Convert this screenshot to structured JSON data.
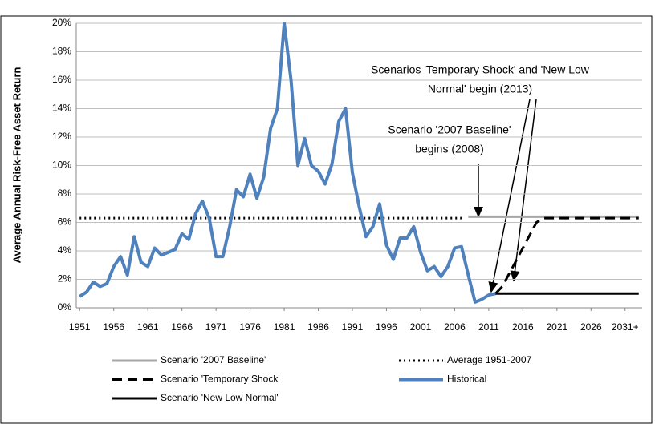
{
  "chart_data": {
    "type": "line",
    "ylabel": "Average Annual Risk-Free Asset Return",
    "xlim": [
      1950.5,
      2033.5
    ],
    "xticks": [
      1951,
      1956,
      1961,
      1966,
      1971,
      1976,
      1981,
      1986,
      1991,
      1996,
      2001,
      2006,
      2011,
      2016,
      2021,
      2026,
      {
        "value": 2031,
        "label": "2031+"
      }
    ],
    "ylim": [
      0,
      20
    ],
    "yticks": [
      {
        "value": 0,
        "label": "0%"
      },
      {
        "value": 2,
        "label": "2%"
      },
      {
        "value": 4,
        "label": "4%"
      },
      {
        "value": 6,
        "label": "6%"
      },
      {
        "value": 8,
        "label": "8%"
      },
      {
        "value": 10,
        "label": "10%"
      },
      {
        "value": 12,
        "label": "12%"
      },
      {
        "value": 14,
        "label": "14%"
      },
      {
        "value": 16,
        "label": "16%"
      },
      {
        "value": 18,
        "label": "18%"
      },
      {
        "value": 20,
        "label": "20%"
      }
    ],
    "grid": true,
    "legend": "bottom",
    "annotations": [
      {
        "lines": [
          "Scenarios 'Temporary Shock' and 'New Low",
          "Normal' begin (2013)"
        ]
      },
      {
        "lines": [
          "Scenario '2007 Baseline'",
          "begins (2008)"
        ]
      }
    ],
    "series": [
      {
        "name": "Scenario '2007 Baseline'",
        "color": "#a6a6a6",
        "style": "solid",
        "x": [
          2008,
          2033
        ],
        "values": [
          6.4,
          6.4
        ]
      },
      {
        "name": "Average 1951-2007",
        "color": "#000000",
        "style": "dotted",
        "x": [
          1951,
          2007
        ],
        "values": [
          6.3,
          6.3
        ]
      },
      {
        "name": "Scenario 'Temporary Shock'",
        "color": "#000000",
        "style": "dashed",
        "x": [
          2012,
          2013,
          2018,
          2019,
          2033
        ],
        "values": [
          1.0,
          1.5,
          6.0,
          6.3,
          6.3
        ]
      },
      {
        "name": "Historical",
        "color": "#4f81bd",
        "style": "thick",
        "x": [
          1951,
          1952,
          1953,
          1954,
          1955,
          1956,
          1957,
          1958,
          1959,
          1960,
          1961,
          1962,
          1963,
          1964,
          1965,
          1966,
          1967,
          1968,
          1969,
          1970,
          1971,
          1972,
          1973,
          1974,
          1975,
          1976,
          1977,
          1978,
          1979,
          1980,
          1981,
          1982,
          1983,
          1984,
          1985,
          1986,
          1987,
          1988,
          1989,
          1990,
          1991,
          1992,
          1993,
          1994,
          1995,
          1996,
          1997,
          1998,
          1999,
          2000,
          2001,
          2002,
          2003,
          2004,
          2005,
          2006,
          2007,
          2008,
          2009,
          2010,
          2011,
          2012
        ],
        "values": [
          0.8,
          1.1,
          1.8,
          1.5,
          1.7,
          2.9,
          3.6,
          2.3,
          5.0,
          3.2,
          2.9,
          4.2,
          3.7,
          3.9,
          4.1,
          5.2,
          4.8,
          6.6,
          7.5,
          6.3,
          3.6,
          3.6,
          5.7,
          8.3,
          7.8,
          9.4,
          7.7,
          9.2,
          12.6,
          14.0,
          20.0,
          16.0,
          10.0,
          11.9,
          10.0,
          9.6,
          8.7,
          10.1,
          13.1,
          14.0,
          9.5,
          7.1,
          5.0,
          5.7,
          7.3,
          4.4,
          3.4,
          4.9,
          4.9,
          5.7,
          3.9,
          2.6,
          2.9,
          2.2,
          2.9,
          4.2,
          4.3,
          2.3,
          0.4,
          0.6,
          0.9,
          1.0
        ]
      },
      {
        "name": "Scenario 'New Low Normal'",
        "color": "#000000",
        "style": "solid",
        "x": [
          2012,
          2033
        ],
        "values": [
          1.0,
          1.0
        ]
      }
    ]
  }
}
